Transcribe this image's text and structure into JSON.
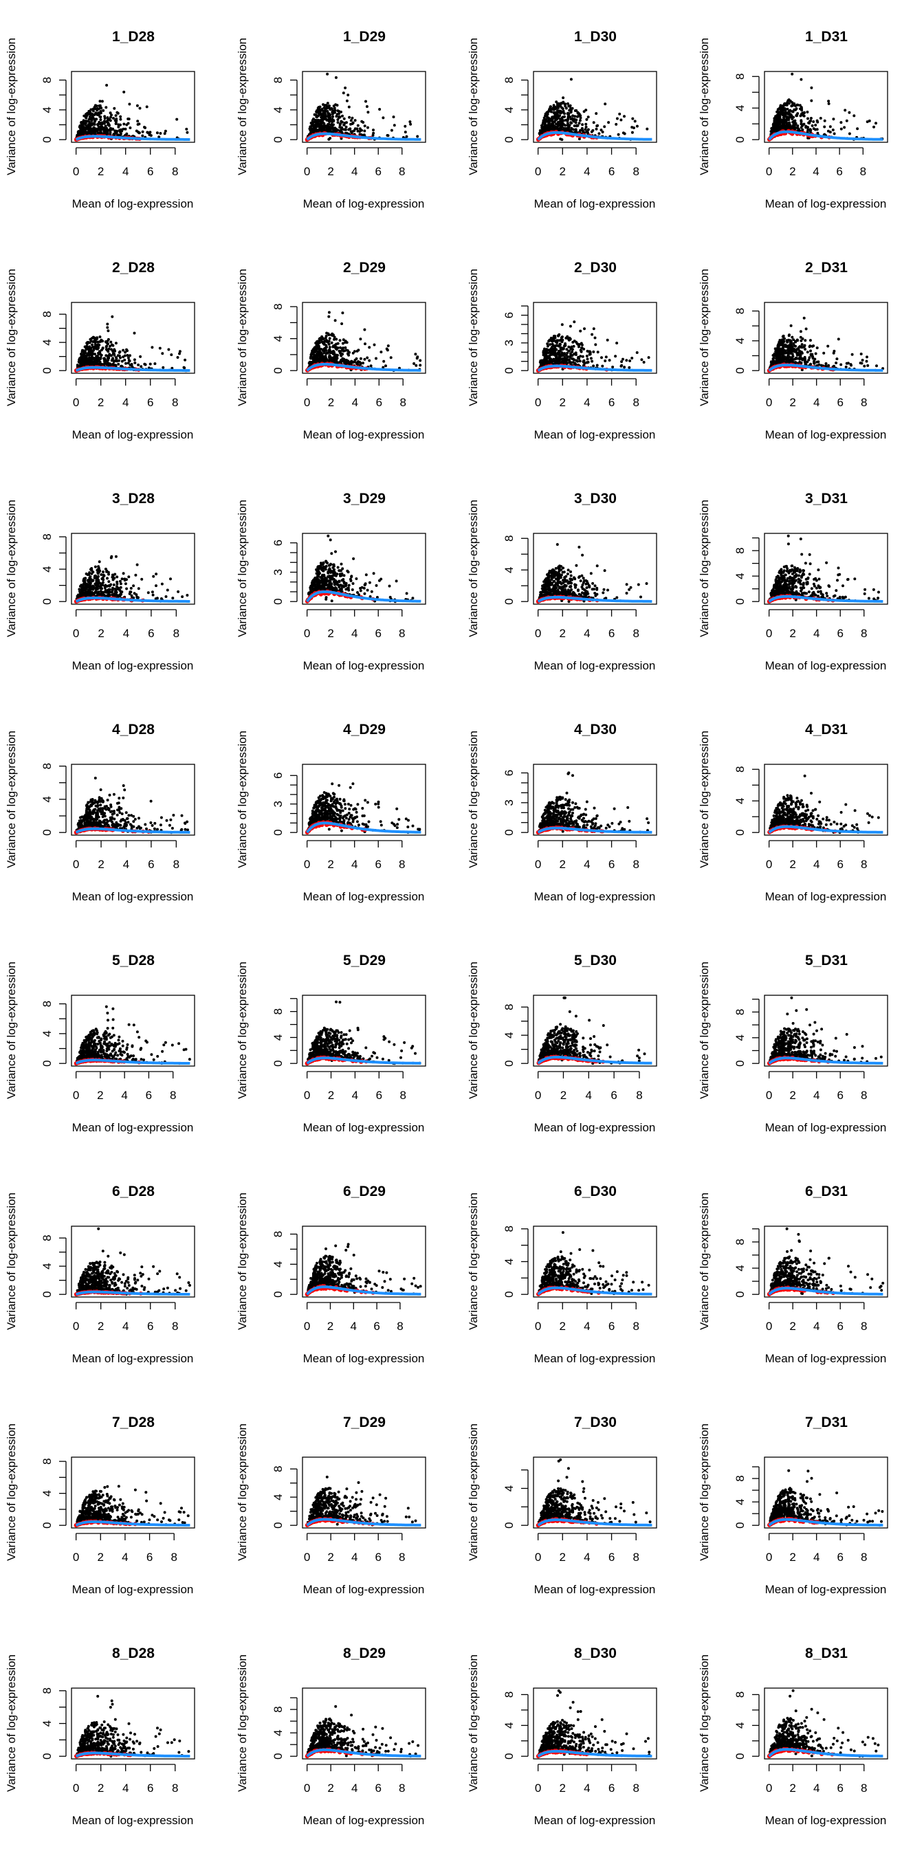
{
  "colors": {
    "points": "#000000",
    "trend_points": "#FF0000",
    "fit_line": "#1E90FF",
    "axes": "#000000"
  },
  "chart_data": [
    {
      "type": "scatter",
      "title": "1_D28",
      "xlabel": "Mean of log-expression",
      "ylabel": "Variance of log-expression",
      "xlim": [
        0,
        9.2
      ],
      "ylim": [
        0,
        8.8
      ],
      "xticks": [
        0,
        2,
        4,
        6,
        8
      ],
      "yticks": [
        0,
        2,
        4,
        6,
        8
      ],
      "yticklabels": [
        "0",
        "4",
        "8"
      ],
      "trend_peak": 0.45
    },
    {
      "type": "scatter",
      "title": "1_D29",
      "xlabel": "Mean of log-expression",
      "ylabel": "Variance of log-expression",
      "xlim": [
        0,
        9.6
      ],
      "ylim": [
        0,
        8.8
      ],
      "xticks": [
        0,
        2,
        4,
        6,
        8
      ],
      "yticks": [
        0,
        2,
        4,
        6,
        8
      ],
      "yticklabels": [
        "0",
        "4",
        "8"
      ],
      "trend_peak": 0.8
    },
    {
      "type": "scatter",
      "title": "1_D30",
      "xlabel": "Mean of log-expression",
      "ylabel": "Variance of log-expression",
      "xlim": [
        0,
        9.3
      ],
      "ylim": [
        0,
        8.8
      ],
      "xticks": [
        0,
        2,
        4,
        6,
        8
      ],
      "yticks": [
        0,
        2,
        4,
        6,
        8
      ],
      "yticklabels": [
        "0",
        "4",
        "8"
      ],
      "trend_peak": 0.95
    },
    {
      "type": "scatter",
      "title": "1_D31",
      "xlabel": "Mean of log-expression",
      "ylabel": "Variance of log-expression",
      "xlim": [
        0,
        9.7
      ],
      "ylim": [
        0,
        8.3
      ],
      "xticks": [
        0,
        2,
        4,
        6,
        8
      ],
      "yticks": [
        0,
        2,
        4,
        6,
        8
      ],
      "yticklabels": [
        "0",
        "4",
        "8"
      ],
      "trend_peak": 1.0
    },
    {
      "type": "scatter",
      "title": "2_D28",
      "xlabel": "Mean of log-expression",
      "ylabel": "Variance of log-expression",
      "xlim": [
        0,
        9.2
      ],
      "ylim": [
        0,
        9.3
      ],
      "xticks": [
        0,
        2,
        4,
        6,
        8
      ],
      "yticks": [
        0,
        2,
        4,
        6,
        8
      ],
      "yticklabels": [
        "0",
        "4",
        "8"
      ],
      "trend_peak": 0.45
    },
    {
      "type": "scatter",
      "title": "2_D29",
      "xlabel": "Mean of log-expression",
      "ylabel": "Variance of log-expression",
      "xlim": [
        0,
        9.5
      ],
      "ylim": [
        0,
        8.2
      ],
      "xticks": [
        0,
        2,
        4,
        6,
        8
      ],
      "yticks": [
        0,
        2,
        4,
        6,
        8
      ],
      "yticklabels": [
        "0",
        "4",
        "8"
      ],
      "trend_peak": 0.8
    },
    {
      "type": "scatter",
      "title": "2_D30",
      "xlabel": "Mean of log-expression",
      "ylabel": "Variance of log-expression",
      "xlim": [
        0,
        9.3
      ],
      "ylim": [
        0,
        7.1
      ],
      "xticks": [
        0,
        2,
        4,
        6,
        8
      ],
      "yticks": [
        0,
        1,
        2,
        3,
        4,
        5,
        6,
        7
      ],
      "yticklabels": [
        "0",
        "3",
        "6"
      ],
      "trend_peak": 0.5
    },
    {
      "type": "scatter",
      "title": "2_D31",
      "xlabel": "Mean of log-expression",
      "ylabel": "Variance of log-expression",
      "xlim": [
        0,
        9.6
      ],
      "ylim": [
        0,
        8.8
      ],
      "xticks": [
        0,
        2,
        4,
        6,
        8
      ],
      "yticks": [
        0,
        2,
        4,
        6,
        8
      ],
      "yticklabels": [
        "0",
        "4",
        "8"
      ],
      "trend_peak": 0.75
    },
    {
      "type": "scatter",
      "title": "3_D28",
      "xlabel": "Mean of log-expression",
      "ylabel": "Variance of log-expression",
      "xlim": [
        0,
        9.1
      ],
      "ylim": [
        0,
        8.1
      ],
      "xticks": [
        0,
        2,
        4,
        6,
        8
      ],
      "yticks": [
        0,
        2,
        4,
        6,
        8
      ],
      "yticklabels": [
        "0",
        "4",
        "8"
      ],
      "trend_peak": 0.45
    },
    {
      "type": "scatter",
      "title": "3_D29",
      "xlabel": "Mean of log-expression",
      "ylabel": "Variance of log-expression",
      "xlim": [
        0,
        9.6
      ],
      "ylim": [
        0,
        6.7
      ],
      "xticks": [
        0,
        2,
        4,
        6,
        8
      ],
      "yticks": [
        0,
        1,
        2,
        3,
        4,
        5,
        6
      ],
      "yticklabels": [
        "0",
        "3",
        "6"
      ],
      "trend_peak": 1.0
    },
    {
      "type": "scatter",
      "title": "3_D30",
      "xlabel": "Mean of log-expression",
      "ylabel": "Variance of log-expression",
      "xlim": [
        0,
        9.3
      ],
      "ylim": [
        0,
        8.3
      ],
      "xticks": [
        0,
        2,
        4,
        6,
        8
      ],
      "yticks": [
        0,
        2,
        4,
        6,
        8
      ],
      "yticklabels": [
        "0",
        "4",
        "8"
      ],
      "trend_peak": 0.55
    },
    {
      "type": "scatter",
      "title": "3_D31",
      "xlabel": "Mean of log-expression",
      "ylabel": "Variance of log-expression",
      "xlim": [
        0,
        9.6
      ],
      "ylim": [
        0,
        10.3
      ],
      "xticks": [
        0,
        2,
        4,
        6,
        8
      ],
      "yticks": [
        0,
        2,
        4,
        6,
        8,
        10
      ],
      "yticklabels": [
        "0",
        "4",
        "8"
      ],
      "trend_peak": 0.8
    },
    {
      "type": "scatter",
      "title": "4_D28",
      "xlabel": "Mean of log-expression",
      "ylabel": "Variance of log-expression",
      "xlim": [
        0,
        9.1
      ],
      "ylim": [
        0,
        7.9
      ],
      "xticks": [
        0,
        2,
        4,
        6,
        8
      ],
      "yticks": [
        0,
        2,
        4,
        6,
        8
      ],
      "yticklabels": [
        "0",
        "4",
        "8"
      ],
      "trend_peak": 0.45
    },
    {
      "type": "scatter",
      "title": "4_D29",
      "xlabel": "Mean of log-expression",
      "ylabel": "Variance of log-expression",
      "xlim": [
        0,
        9.6
      ],
      "ylim": [
        0,
        6.9
      ],
      "xticks": [
        0,
        2,
        4,
        6,
        8
      ],
      "yticks": [
        0,
        1,
        2,
        3,
        4,
        5,
        6
      ],
      "yticklabels": [
        "0",
        "3",
        "6"
      ],
      "trend_peak": 1.0
    },
    {
      "type": "scatter",
      "title": "4_D30",
      "xlabel": "Mean of log-expression",
      "ylabel": "Variance of log-expression",
      "xlim": [
        0,
        9.3
      ],
      "ylim": [
        0,
        6.6
      ],
      "xticks": [
        0,
        2,
        4,
        6,
        8
      ],
      "yticks": [
        0,
        1,
        2,
        3,
        4,
        5,
        6
      ],
      "yticklabels": [
        "0",
        "3",
        "6"
      ],
      "trend_peak": 0.45
    },
    {
      "type": "scatter",
      "title": "4_D31",
      "xlabel": "Mean of log-expression",
      "ylabel": "Variance of log-expression",
      "xlim": [
        0,
        9.6
      ],
      "ylim": [
        0,
        8.3
      ],
      "xticks": [
        0,
        2,
        4,
        6,
        8
      ],
      "yticks": [
        0,
        2,
        4,
        6,
        8
      ],
      "yticklabels": [
        "0",
        "4",
        "8"
      ],
      "trend_peak": 0.75
    },
    {
      "type": "scatter",
      "title": "5_D28",
      "xlabel": "Mean of log-expression",
      "ylabel": "Variance of log-expression",
      "xlim": [
        0,
        9.4
      ],
      "ylim": [
        0,
        8.8
      ],
      "xticks": [
        0,
        2,
        4,
        6,
        8
      ],
      "yticks": [
        0,
        2,
        4,
        6,
        8
      ],
      "yticklabels": [
        "0",
        "4",
        "8"
      ],
      "trend_peak": 0.45
    },
    {
      "type": "scatter",
      "title": "5_D29",
      "xlabel": "Mean of log-expression",
      "ylabel": "Variance of log-expression",
      "xlim": [
        0,
        9.5
      ],
      "ylim": [
        0,
        10.1
      ],
      "xticks": [
        0,
        2,
        4,
        6,
        8
      ],
      "yticks": [
        0,
        2,
        4,
        6,
        8,
        10
      ],
      "yticklabels": [
        "0",
        "4",
        "8"
      ],
      "trend_peak": 0.85
    },
    {
      "type": "scatter",
      "title": "5_D30",
      "xlabel": "Mean of log-expression",
      "ylabel": "Variance of log-expression",
      "xlim": [
        0,
        9.0
      ],
      "ylim": [
        0,
        9.3
      ],
      "xticks": [
        0,
        2,
        4,
        6,
        8
      ],
      "yticks": [
        0,
        2,
        4,
        6,
        8
      ],
      "yticklabels": [
        "0",
        "4",
        "8"
      ],
      "trend_peak": 0.9
    },
    {
      "type": "scatter",
      "title": "5_D31",
      "xlabel": "Mean of log-expression",
      "ylabel": "Variance of log-expression",
      "xlim": [
        0,
        9.6
      ],
      "ylim": [
        0,
        10.2
      ],
      "xticks": [
        0,
        2,
        4,
        6,
        8
      ],
      "yticks": [
        0,
        2,
        4,
        6,
        8,
        10
      ],
      "yticklabels": [
        "0",
        "4",
        "8"
      ],
      "trend_peak": 0.85
    },
    {
      "type": "scatter",
      "title": "6_D28",
      "xlabel": "Mean of log-expression",
      "ylabel": "Variance of log-expression",
      "xlim": [
        0,
        9.2
      ],
      "ylim": [
        0,
        9.3
      ],
      "xticks": [
        0,
        2,
        4,
        6,
        8
      ],
      "yticks": [
        0,
        2,
        4,
        6,
        8
      ],
      "yticklabels": [
        "0",
        "4",
        "8"
      ],
      "trend_peak": 0.35
    },
    {
      "type": "scatter",
      "title": "6_D29",
      "xlabel": "Mean of log-expression",
      "ylabel": "Variance of log-expression",
      "xlim": [
        0,
        9.8
      ],
      "ylim": [
        0,
        8.7
      ],
      "xticks": [
        0,
        2,
        4,
        6,
        8
      ],
      "yticks": [
        0,
        2,
        4,
        6,
        8
      ],
      "yticklabels": [
        "0",
        "4",
        "8"
      ],
      "trend_peak": 1.0
    },
    {
      "type": "scatter",
      "title": "6_D30",
      "xlabel": "Mean of log-expression",
      "ylabel": "Variance of log-expression",
      "xlim": [
        0,
        9.3
      ],
      "ylim": [
        0,
        8.0
      ],
      "xticks": [
        0,
        2,
        4,
        6,
        8
      ],
      "yticks": [
        0,
        2,
        4,
        6,
        8
      ],
      "yticklabels": [
        "0",
        "4",
        "8"
      ],
      "trend_peak": 0.8
    },
    {
      "type": "scatter",
      "title": "6_D31",
      "xlabel": "Mean of log-expression",
      "ylabel": "Variance of log-expression",
      "xlim": [
        0,
        9.6
      ],
      "ylim": [
        0,
        10.0
      ],
      "xticks": [
        0,
        2,
        4,
        6,
        8
      ],
      "yticks": [
        0,
        2,
        4,
        6,
        8,
        10
      ],
      "yticklabels": [
        "0",
        "4",
        "8"
      ],
      "trend_peak": 0.95
    },
    {
      "type": "scatter",
      "title": "7_D28",
      "xlabel": "Mean of log-expression",
      "ylabel": "Variance of log-expression",
      "xlim": [
        0,
        9.3
      ],
      "ylim": [
        0,
        8.2
      ],
      "xticks": [
        0,
        2,
        4,
        6,
        8
      ],
      "yticks": [
        0,
        2,
        4,
        6,
        8
      ],
      "yticklabels": [
        "0",
        "4",
        "8"
      ],
      "trend_peak": 0.45
    },
    {
      "type": "scatter",
      "title": "7_D29",
      "xlabel": "Mean of log-expression",
      "ylabel": "Variance of log-expression",
      "xlim": [
        0,
        9.6
      ],
      "ylim": [
        0,
        9.3
      ],
      "xticks": [
        0,
        2,
        4,
        6,
        8
      ],
      "yticks": [
        0,
        2,
        4,
        6,
        8
      ],
      "yticklabels": [
        "0",
        "4",
        "8"
      ],
      "trend_peak": 0.85
    },
    {
      "type": "scatter",
      "title": "7_D30",
      "xlabel": "Mean of log-expression",
      "ylabel": "Variance of log-expression",
      "xlim": [
        0,
        9.3
      ],
      "ylim": [
        0,
        7.1
      ],
      "xticks": [
        0,
        2,
        4,
        6,
        8
      ],
      "yticks": [
        0,
        2,
        4,
        6
      ],
      "yticklabels": [
        "0",
        "4"
      ],
      "trend_peak": 0.6
    },
    {
      "type": "scatter",
      "title": "7_D31",
      "xlabel": "Mean of log-expression",
      "ylabel": "Variance of log-expression",
      "xlim": [
        0,
        9.6
      ],
      "ylim": [
        0,
        11.2
      ],
      "xticks": [
        0,
        2,
        4,
        6,
        8
      ],
      "yticks": [
        0,
        2,
        4,
        6,
        8,
        10
      ],
      "yticklabels": [
        "0",
        "4",
        "8"
      ],
      "trend_peak": 1.0
    },
    {
      "type": "scatter",
      "title": "8_D28",
      "xlabel": "Mean of log-expression",
      "ylabel": "Variance of log-expression",
      "xlim": [
        0,
        9.2
      ],
      "ylim": [
        0,
        8.0
      ],
      "xticks": [
        0,
        2,
        4,
        6,
        8
      ],
      "yticks": [
        0,
        2,
        4,
        6,
        8
      ],
      "yticklabels": [
        "0",
        "4",
        "8"
      ],
      "trend_peak": 0.4
    },
    {
      "type": "scatter",
      "title": "8_D29",
      "xlabel": "Mean of log-expression",
      "ylabel": "Variance of log-expression",
      "xlim": [
        0,
        9.6
      ],
      "ylim": [
        0,
        11.2
      ],
      "xticks": [
        0,
        2,
        4,
        6,
        8
      ],
      "yticks": [
        0,
        2,
        4,
        6,
        8,
        10
      ],
      "yticklabels": [
        "0",
        "4",
        "8"
      ],
      "trend_peak": 1.1
    },
    {
      "type": "scatter",
      "title": "8_D30",
      "xlabel": "Mean of log-expression",
      "ylabel": "Variance of log-expression",
      "xlim": [
        0,
        9.3
      ],
      "ylim": [
        0,
        8.5
      ],
      "xticks": [
        0,
        2,
        4,
        6,
        8
      ],
      "yticks": [
        0,
        2,
        4,
        6,
        8
      ],
      "yticklabels": [
        "0",
        "4",
        "8"
      ],
      "trend_peak": 0.65
    },
    {
      "type": "scatter",
      "title": "8_D31",
      "xlabel": "Mean of log-expression",
      "ylabel": "Variance of log-expression",
      "xlim": [
        0,
        9.6
      ],
      "ylim": [
        0,
        8.5
      ],
      "xticks": [
        0,
        2,
        4,
        6,
        8
      ],
      "yticks": [
        0,
        2,
        4,
        6,
        8
      ],
      "yticklabels": [
        "0",
        "4",
        "8"
      ],
      "trend_peak": 0.9
    }
  ]
}
